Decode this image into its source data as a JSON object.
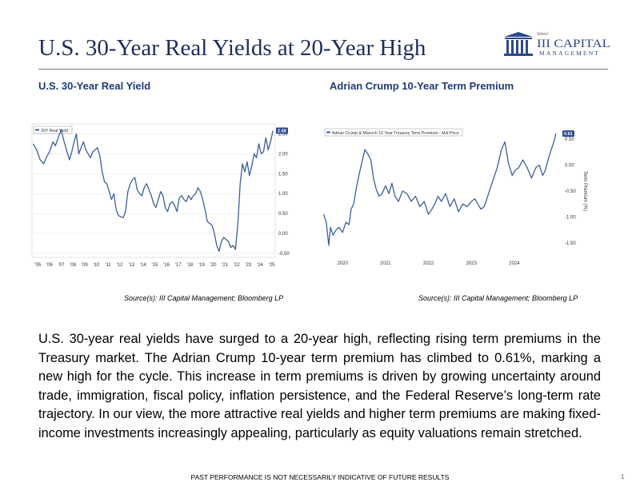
{
  "slide": {
    "title": "U.S. 30-Year Real Yields at 20-Year High",
    "logo": {
      "prefix": "Select",
      "name": "III CAPITAL",
      "sub": "MANAGEMENT"
    },
    "body": "U.S. 30-year real yields have surged to a 20-year high, reflecting rising term premiums in the Treasury market. The Adrian Crump 10-year term premium has climbed to 0.61%, marking a new high for the cycle. This increase in term premiums is driven by growing uncertainty around trade, immigration, fiscal policy, inflation persistence, and the Federal Reserve’s long-term rate trajectory. In our view, the more attractive real yields and higher term premiums are making fixed-income investments increasingly appealing, particularly as equity valuations remain stretched.",
    "disclaimer": "PAST PERFORMANCE IS NOT NECESSARILY INDICATIVE OF FUTURE RESULTS",
    "page_number": "1",
    "colors": {
      "title": "#1f2d5a",
      "chart_title": "#1f3b79",
      "line": "#3d5f9e",
      "badge": "#2d4a8c"
    }
  },
  "chart_data": [
    {
      "type": "line",
      "heading": "U.S. 30-Year Real Yield",
      "source": "Source(s): III Capital Management; Bloomberg LP",
      "legend": "30Y Real Yield",
      "last_value_label": "2.58",
      "y_ticks": [
        "2.50",
        "2.00",
        "1.50",
        "1.00",
        "0.50",
        "0.00",
        "-0.50"
      ],
      "x_ticks": [
        "'05",
        "'06",
        "'07",
        "'08",
        "'09",
        "'10",
        "'11",
        "'12",
        "'13",
        "'14",
        "'15",
        "'16",
        "'17",
        "'18",
        "'19",
        "'20",
        "'21",
        "'22",
        "'23",
        "'24",
        "'25"
      ],
      "ylim": [
        -0.6,
        2.75
      ],
      "xlim": [
        2004.5,
        2025.3
      ],
      "y_axis_side": "right",
      "grid": true,
      "series": [
        {
          "x": [
            2004.6,
            2004.9,
            2005.2,
            2005.5,
            2005.8,
            2006.0,
            2006.3,
            2006.5,
            2006.8,
            2007.0,
            2007.2,
            2007.5,
            2007.7,
            2007.9,
            2008.1,
            2008.3,
            2008.5,
            2008.7,
            2008.9,
            2009.1,
            2009.3,
            2009.5,
            2009.7,
            2009.9,
            2010.1,
            2010.3,
            2010.5,
            2010.7,
            2010.9,
            2011.1,
            2011.3,
            2011.5,
            2011.7,
            2011.9,
            2012.1,
            2012.3,
            2012.5,
            2012.7,
            2012.9,
            2013.1,
            2013.3,
            2013.5,
            2013.7,
            2013.9,
            2014.1,
            2014.3,
            2014.5,
            2014.7,
            2014.9,
            2015.1,
            2015.3,
            2015.5,
            2015.7,
            2015.9,
            2016.1,
            2016.3,
            2016.5,
            2016.7,
            2016.9,
            2017.1,
            2017.3,
            2017.5,
            2017.7,
            2017.9,
            2018.1,
            2018.3,
            2018.5,
            2018.7,
            2018.9,
            2019.1,
            2019.3,
            2019.5,
            2019.7,
            2019.9,
            2020.1,
            2020.3,
            2020.5,
            2020.7,
            2020.9,
            2021.1,
            2021.3,
            2021.5,
            2021.7,
            2021.9,
            2022.1,
            2022.3,
            2022.5,
            2022.7,
            2022.9,
            2023.1,
            2023.3,
            2023.5,
            2023.7,
            2023.9,
            2024.1,
            2024.3,
            2024.5,
            2024.7,
            2024.9,
            2025.1
          ],
          "y": [
            2.25,
            2.1,
            1.85,
            1.75,
            1.95,
            2.05,
            2.3,
            2.2,
            2.45,
            2.6,
            2.35,
            2.05,
            1.85,
            2.05,
            2.3,
            2.5,
            2.0,
            2.15,
            2.3,
            2.1,
            2.0,
            1.9,
            2.05,
            2.1,
            2.15,
            1.95,
            1.55,
            1.3,
            1.25,
            1.05,
            0.85,
            1.0,
            0.6,
            0.45,
            0.42,
            0.4,
            0.55,
            1.05,
            1.25,
            1.35,
            1.4,
            1.1,
            1.0,
            0.95,
            1.15,
            1.25,
            1.1,
            0.95,
            0.75,
            0.65,
            0.85,
            1.05,
            0.95,
            0.65,
            0.55,
            0.75,
            0.8,
            0.7,
            0.55,
            0.9,
            0.95,
            0.85,
            0.8,
            0.95,
            0.85,
            0.95,
            1.0,
            1.15,
            1.05,
            0.85,
            0.6,
            0.3,
            0.25,
            0.2,
            0.0,
            -0.3,
            -0.45,
            -0.2,
            -0.1,
            -0.15,
            -0.2,
            -0.35,
            -0.3,
            -0.4,
            0.2,
            1.25,
            1.75,
            1.55,
            1.8,
            1.45,
            1.7,
            2.0,
            1.9,
            2.25,
            2.0,
            2.05,
            2.4,
            2.1,
            2.3,
            2.58
          ]
        }
      ]
    },
    {
      "type": "line",
      "heading": "Adrian Crump 10-Year Term Premium",
      "source": "Source(s): III Capital Management; Bloomberg LP",
      "legend": "Adrian Crump & Moench 10 Year Treasury Term Premium - Mid Price",
      "last_value_label": "0.61",
      "y_axis_title": "Term Premium (%)",
      "y_ticks": [
        "0.50",
        "0.00",
        "-0.50",
        "-1.00",
        "-1.50"
      ],
      "x_ticks": [
        "2020",
        "2021",
        "2022",
        "2023",
        "2024"
      ],
      "ylim": [
        -1.75,
        0.75
      ],
      "xlim": [
        2019.55,
        2025.1
      ],
      "y_axis_side": "right",
      "grid": false,
      "series": [
        {
          "x": [
            2019.56,
            2019.62,
            2019.68,
            2019.72,
            2019.78,
            2019.85,
            2019.92,
            2020.0,
            2020.08,
            2020.15,
            2020.2,
            2020.26,
            2020.32,
            2020.38,
            2020.45,
            2020.52,
            2020.6,
            2020.66,
            2020.72,
            2020.78,
            2020.85,
            2020.92,
            2021.0,
            2021.08,
            2021.15,
            2021.22,
            2021.3,
            2021.4,
            2021.5,
            2021.6,
            2021.7,
            2021.8,
            2021.9,
            2022.0,
            2022.08,
            2022.15,
            2022.22,
            2022.3,
            2022.4,
            2022.5,
            2022.6,
            2022.7,
            2022.8,
            2022.9,
            2023.0,
            2023.08,
            2023.15,
            2023.22,
            2023.3,
            2023.4,
            2023.5,
            2023.6,
            2023.7,
            2023.78,
            2023.86,
            2023.95,
            2024.02,
            2024.1,
            2024.2,
            2024.3,
            2024.4,
            2024.5,
            2024.58,
            2024.66,
            2024.72,
            2024.8,
            2024.86,
            2024.92,
            2024.97
          ],
          "y": [
            -0.95,
            -1.1,
            -1.55,
            -1.2,
            -1.35,
            -1.25,
            -1.2,
            -1.3,
            -1.1,
            -1.15,
            -0.85,
            -0.75,
            -0.45,
            -0.2,
            0.05,
            0.3,
            0.2,
            0.1,
            -0.25,
            -0.45,
            -0.6,
            -0.55,
            -0.4,
            -0.55,
            -0.35,
            -0.6,
            -0.7,
            -0.5,
            -0.55,
            -0.7,
            -0.6,
            -0.8,
            -0.7,
            -0.95,
            -0.85,
            -0.75,
            -0.6,
            -0.7,
            -0.55,
            -0.8,
            -0.65,
            -0.9,
            -0.75,
            -0.8,
            -0.7,
            -0.65,
            -0.75,
            -0.85,
            -0.8,
            -0.55,
            -0.3,
            -0.05,
            0.3,
            0.45,
            0.05,
            -0.2,
            -0.1,
            -0.05,
            0.1,
            -0.05,
            -0.25,
            -0.05,
            0.0,
            -0.2,
            -0.1,
            0.15,
            0.3,
            0.45,
            0.61
          ]
        }
      ]
    }
  ]
}
